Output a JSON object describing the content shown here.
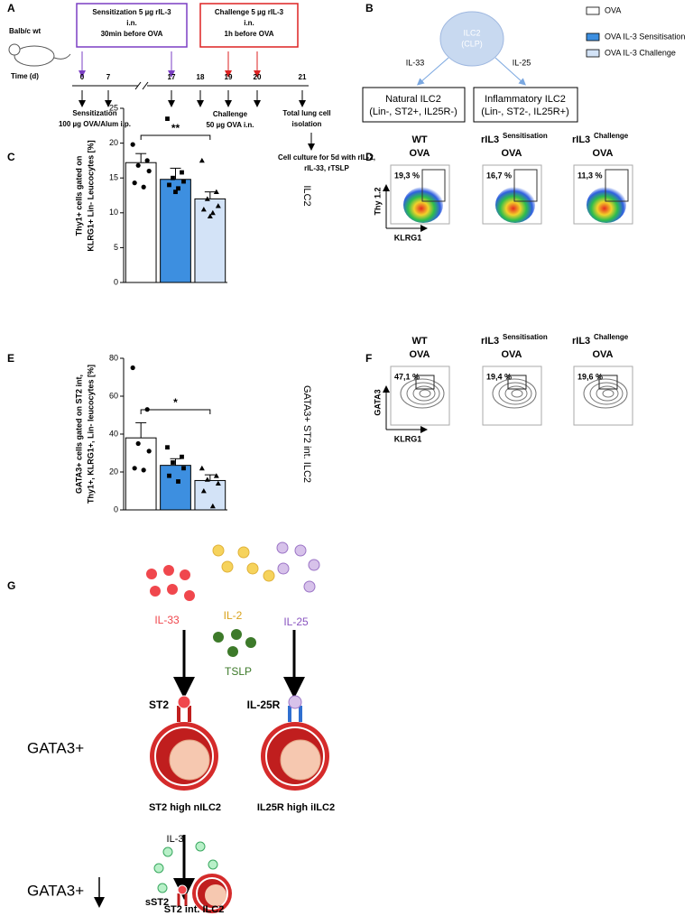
{
  "panel_labels": [
    "A",
    "B",
    "C",
    "D",
    "E",
    "F",
    "G"
  ],
  "timeline": {
    "strain": "Balb/c wt",
    "time_label": "Time (d)",
    "sensitization_box": [
      "Sensitization 5 µg rIL-3",
      "i.n.",
      "30min before OVA"
    ],
    "challenge_box": [
      "Challenge 5 µg rIL-3",
      "i.n.",
      "1h before OVA"
    ],
    "days": [
      0,
      7,
      17,
      18,
      19,
      20,
      21
    ],
    "sensitization_note": [
      "Sensitization",
      "100 µg OVA/Alum i.p."
    ],
    "challenge_note": [
      "Challenge",
      "50 µg OVA i.n."
    ],
    "isolation_note": [
      "Total lung cell",
      "isolation"
    ],
    "culture_note": [
      "Cell culture for 5d with rIL-2,",
      "rIL-33, rTSLP"
    ]
  },
  "lineage": {
    "progenitor": [
      "ILC2",
      "(CLP)"
    ],
    "left_cytokine": "IL-33",
    "right_cytokine": "IL-25",
    "left_box": [
      "Natural ILC2",
      "(Lin-, ST2+, IL25R-)"
    ],
    "right_box": [
      "Inflammatory ILC2",
      "(Lin-, ST2-, IL25R+)"
    ]
  },
  "legend": [
    "OVA",
    "OVA IL-3 Sensitisation",
    "OVA IL-3 Challenge"
  ],
  "chart_data": [
    {
      "type": "bar",
      "y_label": [
        "Thy1+ cells gated on",
        "KLRG1+ Lin- Leucocytes [%]"
      ],
      "side_label": "ILC2",
      "categories": [
        null,
        null,
        null
      ],
      "values": [
        17.2,
        14.8,
        12.0
      ],
      "errors": [
        1.3,
        1.6,
        1.0
      ],
      "points": [
        [
          19.8,
          17.5,
          16.8,
          16,
          14.3,
          13.7
        ],
        [
          23.5,
          15.8,
          15,
          14.5,
          14,
          13.5,
          13
        ],
        [
          17.5,
          13,
          12,
          11,
          10.5,
          10,
          9.5
        ]
      ],
      "colors": [
        "#ffffff",
        "#3d8fe0",
        "#d3e3f7"
      ],
      "ylim": [
        0,
        25
      ],
      "yticks": [
        0,
        5,
        10,
        15,
        20,
        25
      ],
      "significance": "**"
    },
    {
      "type": "bar",
      "y_label": [
        "GATA3+ cells gated on ST2 int,",
        "Thy1+, KLRG1+, Lin- leucocytes [%]"
      ],
      "side_label": "GATA3+ ST2 int. ILC2",
      "categories": [
        null,
        null,
        null
      ],
      "values": [
        38,
        23.5,
        15.5
      ],
      "errors": [
        8,
        3.5,
        3
      ],
      "points": [
        [
          75,
          53,
          35,
          31,
          22,
          21
        ],
        [
          33,
          28,
          25,
          22,
          18,
          15
        ],
        [
          22,
          18,
          16,
          14,
          10,
          2
        ]
      ],
      "colors": [
        "#ffffff",
        "#3d8fe0",
        "#d3e3f7"
      ],
      "ylim": [
        0,
        80
      ],
      "yticks": [
        0,
        20,
        40,
        60,
        80
      ],
      "significance": "*"
    }
  ],
  "flow_D": {
    "columns": [
      {
        "top": "WT",
        "bottom": "OVA",
        "gate": "19,3 %"
      },
      {
        "top": "rIL3",
        "superscript": "Sensitisation",
        "bottom": "OVA",
        "gate": "16,7 %"
      },
      {
        "top": "rIL3",
        "superscript": "Challenge",
        "bottom": "OVA",
        "gate": "11,3 %"
      }
    ],
    "y_axis": "Thy 1.2",
    "x_axis": "KLRG1"
  },
  "flow_F": {
    "columns": [
      {
        "top": "WT",
        "bottom": "OVA",
        "gate": "47,1 %"
      },
      {
        "top": "rIL3",
        "superscript": "Sensitisation",
        "bottom": "OVA",
        "gate": "19,4 %"
      },
      {
        "top": "rIL3",
        "superscript": "Challenge",
        "bottom": "OVA",
        "gate": "19,6 %"
      }
    ],
    "y_axis": "GATA3",
    "x_axis": "KLRG1"
  },
  "model": {
    "il33": "IL-33",
    "il2": "IL-2",
    "il25": "IL-25",
    "tslp": "TSLP",
    "st2": "ST2",
    "il25r": "IL-25R",
    "state_high": "GATA3+",
    "left_cell": "ST2 high nILC2",
    "right_cell": "IL25R high iILC2",
    "il3": "IL-3",
    "state_low": "GATA3+",
    "sst2": "sST2",
    "bottom_cell": "ST2 int. ILC2"
  }
}
